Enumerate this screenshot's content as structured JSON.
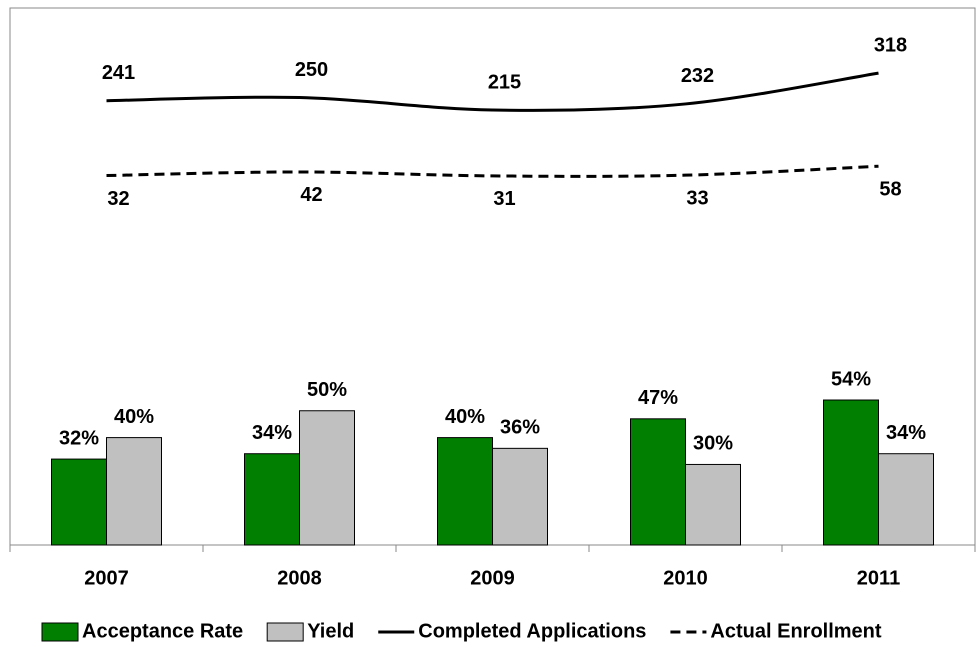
{
  "chart_data": {
    "type": "bar_line",
    "categories": [
      "2007",
      "2008",
      "2009",
      "2010",
      "2011"
    ],
    "series": [
      {
        "name": "Acceptance Rate",
        "type": "bar",
        "color": "#007f00",
        "values": [
          32,
          34,
          40,
          47,
          54
        ],
        "value_labels": [
          "32%",
          "34%",
          "40%",
          "47%",
          "54%"
        ]
      },
      {
        "name": "Yield",
        "type": "bar",
        "color": "#c0c0c0",
        "values": [
          40,
          50,
          36,
          30,
          34
        ],
        "value_labels": [
          "40%",
          "50%",
          "36%",
          "30%",
          "34%"
        ]
      },
      {
        "name": "Completed Applications",
        "type": "line",
        "axis": "y2",
        "color": "#000000",
        "dash": "solid",
        "values": [
          241,
          250,
          215,
          232,
          318
        ]
      },
      {
        "name": "Actual Enrollment",
        "type": "line",
        "axis": "y2",
        "color": "#000000",
        "dash": "dashed",
        "values": [
          32,
          42,
          31,
          33,
          58
        ]
      }
    ],
    "ylim": [
      0,
      200
    ],
    "y2lim": [
      -1000,
      500
    ],
    "legend": "bottom"
  }
}
